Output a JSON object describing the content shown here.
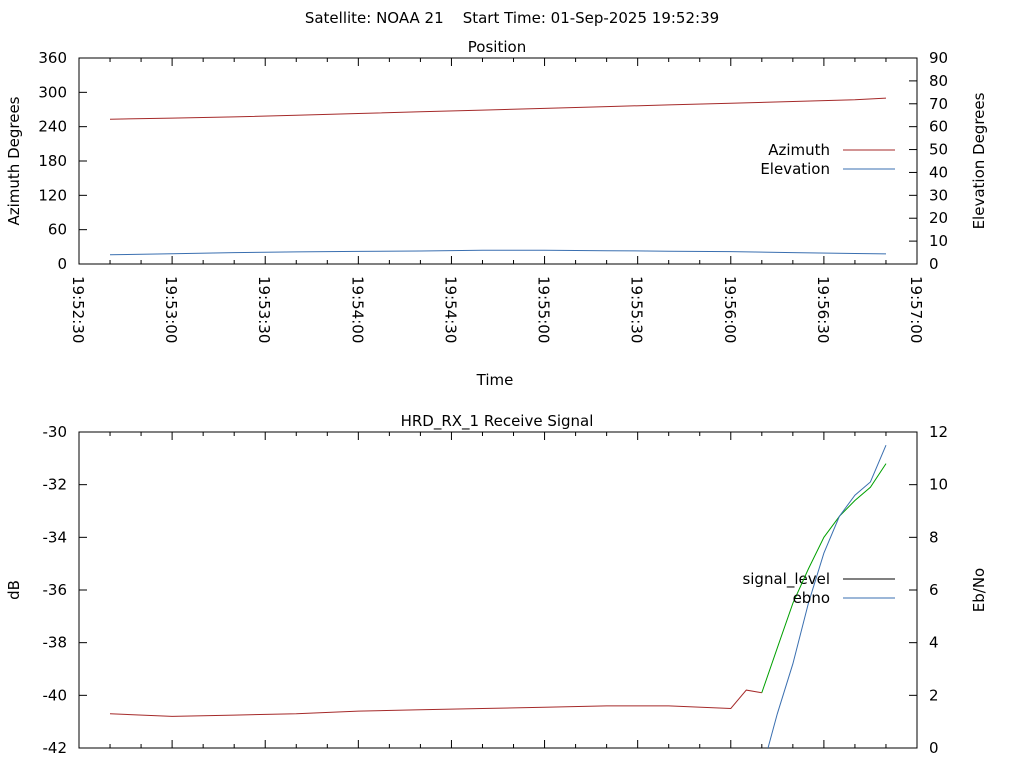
{
  "page_title": "Satellite: NOAA 21    Start Time: 01-Sep-2025 19:52:39",
  "chart_data": [
    {
      "type": "line",
      "title": "Position",
      "xlabel": "Time",
      "ylabel": "Azimuth Degrees",
      "y2label": "Elevation Degrees",
      "x_ticks": [
        "19:52:30",
        "19:53:00",
        "19:53:30",
        "19:54:00",
        "19:54:30",
        "19:55:00",
        "19:55:30",
        "19:56:00",
        "19:56:30",
        "19:57:00"
      ],
      "ylim": [
        0,
        360
      ],
      "y_ticks": [
        0,
        60,
        120,
        180,
        240,
        300,
        360
      ],
      "y2lim": [
        0,
        90
      ],
      "y2_ticks": [
        0,
        10,
        20,
        30,
        40,
        50,
        60,
        70,
        80,
        90
      ],
      "legend_position": "right",
      "series": [
        {
          "name": "Azimuth",
          "axis": "y",
          "color": "#a52a2a",
          "x": [
            "19:52:40",
            "19:53:00",
            "19:53:20",
            "19:53:40",
            "19:54:00",
            "19:54:20",
            "19:54:40",
            "19:55:00",
            "19:55:20",
            "19:55:40",
            "19:56:00",
            "19:56:20",
            "19:56:40",
            "19:56:50"
          ],
          "values": [
            253,
            255,
            257,
            260,
            263,
            266,
            269,
            272,
            275,
            278,
            281,
            284,
            287,
            290
          ]
        },
        {
          "name": "Elevation",
          "axis": "y2",
          "color": "#3a6fb0",
          "x": [
            "19:52:40",
            "19:53:00",
            "19:53:20",
            "19:53:40",
            "19:54:00",
            "19:54:20",
            "19:54:40",
            "19:55:00",
            "19:55:20",
            "19:55:40",
            "19:56:00",
            "19:56:20",
            "19:56:40",
            "19:56:50"
          ],
          "values": [
            4,
            4.5,
            5,
            5.3,
            5.5,
            5.7,
            6,
            6,
            5.8,
            5.6,
            5.4,
            5,
            4.6,
            4.4
          ]
        }
      ]
    },
    {
      "type": "line",
      "title": "HRD_RX_1 Receive Signal",
      "ylabel": "dB",
      "y2label": "Eb/No",
      "ylim": [
        -42,
        -30
      ],
      "y_ticks": [
        -42,
        -40,
        -38,
        -36,
        -34,
        -32,
        -30
      ],
      "y2lim": [
        0,
        12
      ],
      "y2_ticks": [
        0,
        2,
        4,
        6,
        8,
        10,
        12
      ],
      "legend_position": "right",
      "series": [
        {
          "name": "signal_level",
          "axis": "y",
          "color": "#a52a2a",
          "x": [
            "19:52:40",
            "19:53:00",
            "19:53:20",
            "19:53:40",
            "19:54:00",
            "19:54:20",
            "19:54:40",
            "19:55:00",
            "19:55:20",
            "19:55:40",
            "19:56:00",
            "19:56:05",
            "19:56:10"
          ],
          "values": [
            -40.7,
            -40.8,
            -40.75,
            -40.7,
            -40.6,
            -40.55,
            -40.5,
            -40.45,
            -40.4,
            -40.4,
            -40.5,
            -39.8,
            -39.9
          ]
        },
        {
          "name": "",
          "axis": "y",
          "color": "#00a000",
          "x": [
            "19:56:10",
            "19:56:15",
            "19:56:20",
            "19:56:25",
            "19:56:30",
            "19:56:35",
            "19:56:40",
            "19:56:45",
            "19:56:50"
          ],
          "values": [
            -39.9,
            -38.2,
            -36.5,
            -35.2,
            -34.0,
            -33.2,
            -32.6,
            -32.1,
            -31.2
          ]
        },
        {
          "name": "ebno",
          "axis": "y2",
          "color": "#3a6fb0",
          "x": [
            "19:56:12",
            "19:56:15",
            "19:56:20",
            "19:56:25",
            "19:56:30",
            "19:56:35",
            "19:56:40",
            "19:56:45",
            "19:56:50"
          ],
          "values": [
            0,
            1.3,
            3.2,
            5.5,
            7.4,
            8.8,
            9.6,
            10.1,
            11.5
          ]
        }
      ]
    }
  ]
}
